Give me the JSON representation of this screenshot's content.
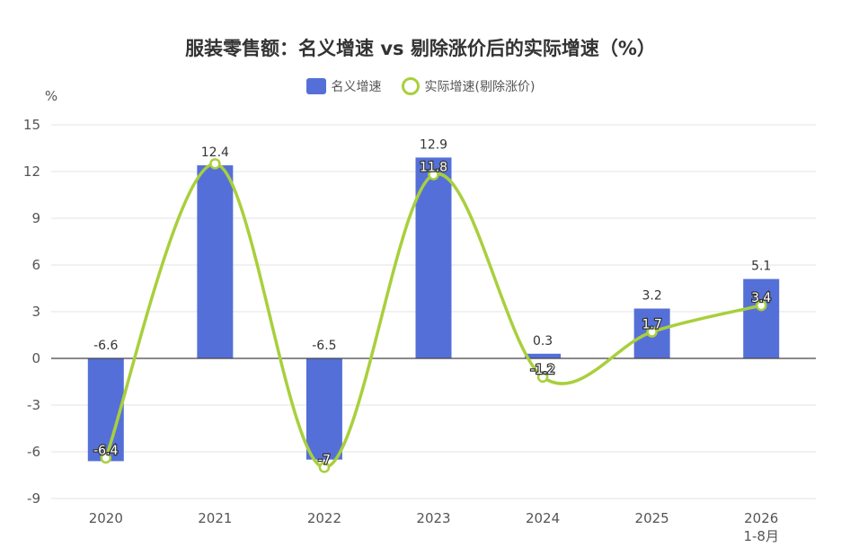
{
  "chart_data": {
    "type": "bar",
    "title": "服装零售额：名义增速 vs 剔除涨价后的实际增速（%）",
    "ylabel": "%",
    "ylim": [
      -9,
      15
    ],
    "yticks": [
      15,
      12,
      9,
      6,
      3,
      0,
      -3,
      -6,
      -9
    ],
    "categories": [
      "2020",
      "2021",
      "2022",
      "2023",
      "2024",
      "2025",
      "2026\n1-8月"
    ],
    "series": [
      {
        "name": "名义增速",
        "type": "bar",
        "color": "#5470d8",
        "values": [
          -6.6,
          12.4,
          -6.5,
          12.9,
          0.3,
          3.2,
          5.1
        ]
      },
      {
        "name": "实际增速(剔除涨价)",
        "type": "line",
        "smooth": true,
        "color": "#a9cf3c",
        "values": [
          -6.4,
          12.5,
          -7,
          11.8,
          -1.2,
          1.7,
          3.4
        ],
        "labels": [
          "-6.4",
          "",
          "-7",
          "11.8",
          "-1.2",
          "1.7",
          "3.4"
        ]
      }
    ],
    "legend_position": "top-center",
    "grid": true
  }
}
